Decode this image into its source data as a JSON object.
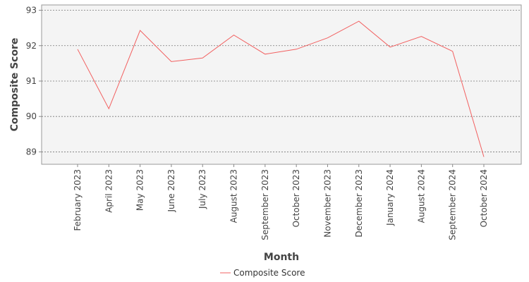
{
  "chart_data": {
    "type": "line",
    "title": "",
    "xlabel": "Month",
    "ylabel": "Composite Score",
    "categories": [
      "February 2023",
      "April 2023",
      "May 2023",
      "June 2023",
      "July 2023",
      "August 2023",
      "September 2023",
      "October 2023",
      "November 2023",
      "December 2023",
      "January 2024",
      "August 2024",
      "September 2024",
      "October 2024"
    ],
    "series": [
      {
        "name": "Composite Score",
        "color": "#f26060",
        "values": [
          91.9,
          90.22,
          92.43,
          91.55,
          91.65,
          92.3,
          91.76,
          91.9,
          92.22,
          92.69,
          91.96,
          92.26,
          91.84,
          88.86
        ]
      }
    ],
    "ylim": [
      88.65,
      93.15
    ],
    "yticks": [
      89,
      90,
      91,
      92,
      93
    ],
    "grid": true,
    "legend_position": "bottom"
  }
}
